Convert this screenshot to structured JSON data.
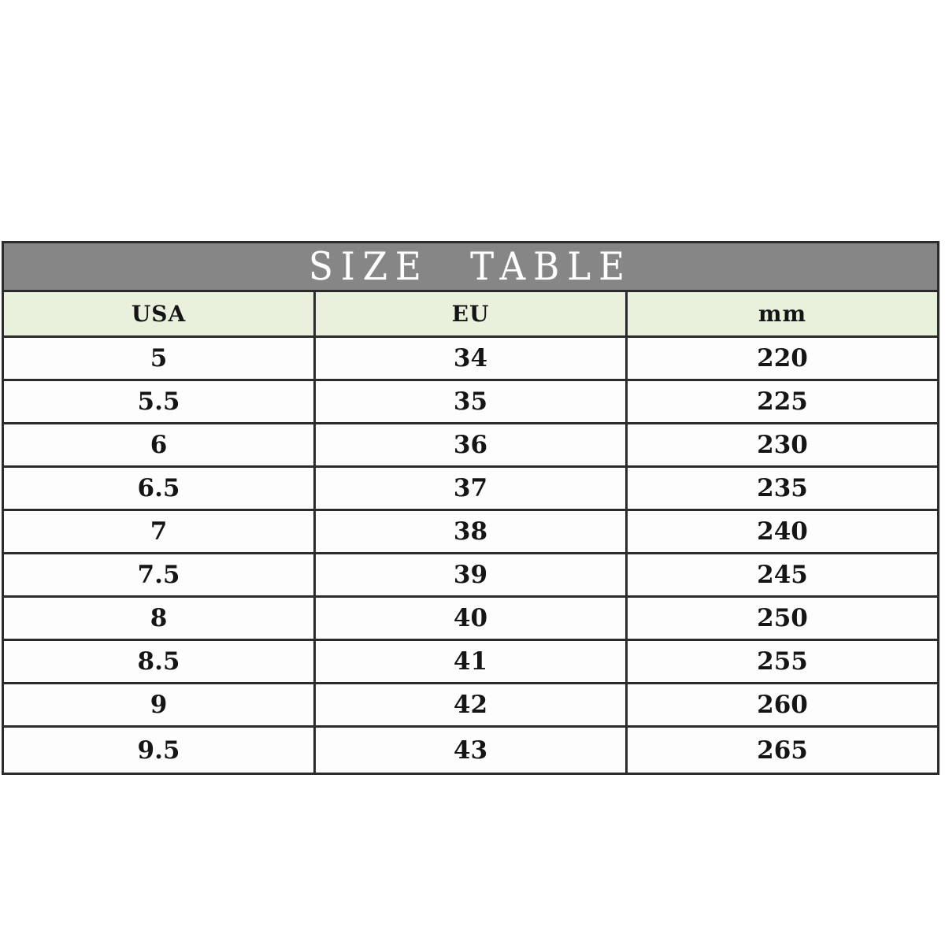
{
  "chart_data": {
    "type": "table",
    "title": "SIZE TABLE",
    "columns": [
      "USA",
      "EU",
      "mm"
    ],
    "rows": [
      [
        "5",
        "34",
        "220"
      ],
      [
        "5.5",
        "35",
        "225"
      ],
      [
        "6",
        "36",
        "230"
      ],
      [
        "6.5",
        "37",
        "235"
      ],
      [
        "7",
        "38",
        "240"
      ],
      [
        "7.5",
        "39",
        "245"
      ],
      [
        "8",
        "40",
        "250"
      ],
      [
        "8.5",
        "41",
        "255"
      ],
      [
        "9",
        "42",
        "260"
      ],
      [
        "9.5",
        "43",
        "265"
      ]
    ],
    "layout": {
      "legend": "none",
      "grid": "full-borders",
      "column_count": 3,
      "row_count": 10
    }
  },
  "colors": {
    "page_bg": "#ffffff",
    "title_bar_bg": "#868686",
    "title_text": "#ffffff",
    "header_bg": "#e9f1dd",
    "cell_bg": "#fdfdfd",
    "border": "#2b2b2b",
    "cell_text": "#151515"
  }
}
